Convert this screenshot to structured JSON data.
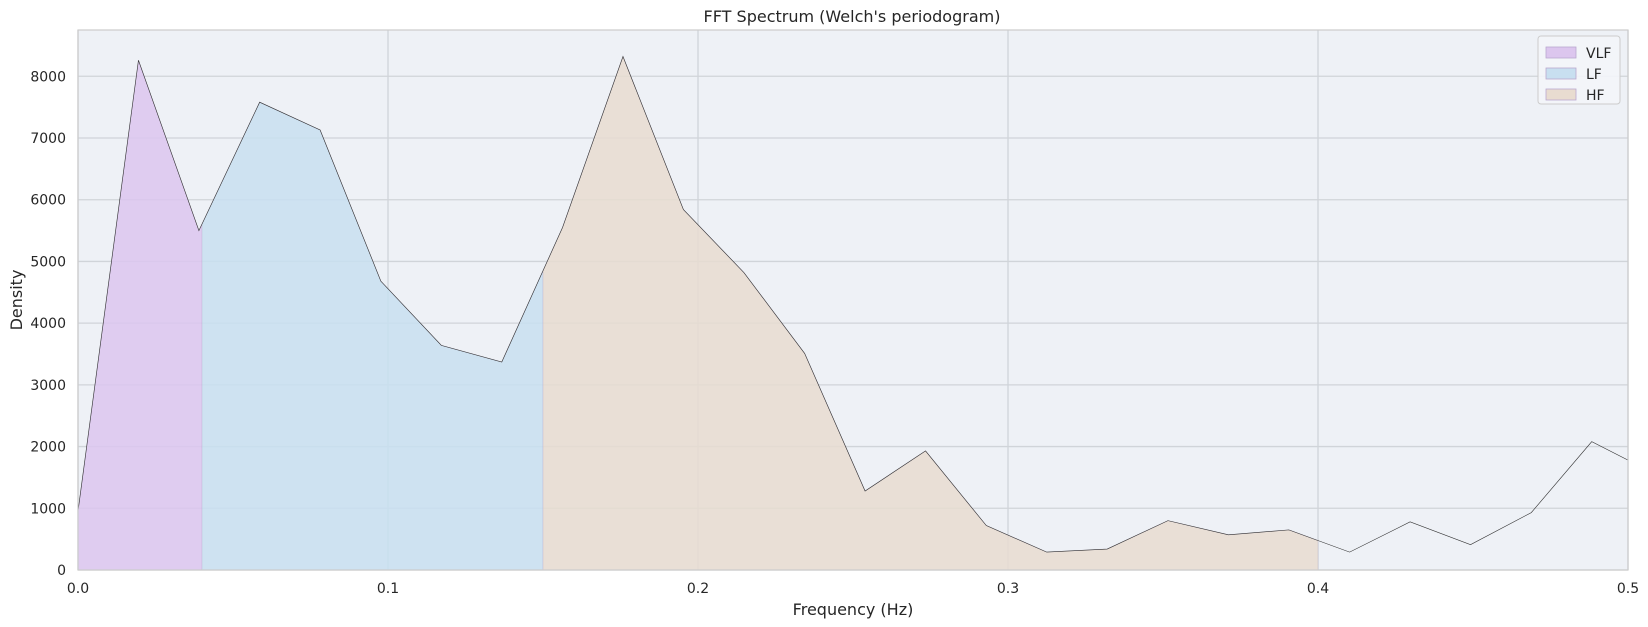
{
  "chart_data": {
    "type": "area",
    "title": "FFT Spectrum (Welch's periodogram)",
    "xlabel": "Frequency (Hz)",
    "ylabel": "Density",
    "xlim": [
      0,
      0.5
    ],
    "ylim": [
      0,
      8750
    ],
    "x_ticks": [
      0,
      0.1,
      0.2,
      0.3,
      0.4,
      0.5
    ],
    "x_tick_labels": [
      "0.0",
      "0.1",
      "0.2",
      "0.3",
      "0.4",
      "0.5"
    ],
    "y_ticks": [
      0,
      1000,
      2000,
      3000,
      4000,
      5000,
      6000,
      7000,
      8000
    ],
    "y_tick_labels": [
      "0",
      "1000",
      "2000",
      "3000",
      "4000",
      "5000",
      "6000",
      "7000",
      "8000"
    ],
    "grid": true,
    "legend_position": "top-right",
    "line_color": "#2f2f2f",
    "background_color": "#eef1f6",
    "spectrum": {
      "x": [
        0.0,
        0.0195,
        0.039,
        0.0586,
        0.0781,
        0.0977,
        0.1172,
        0.1367,
        0.1563,
        0.1758,
        0.1953,
        0.2148,
        0.2344,
        0.2539,
        0.2734,
        0.293,
        0.3125,
        0.332,
        0.3516,
        0.3711,
        0.3906,
        0.4102,
        0.4297,
        0.4492,
        0.4688,
        0.4883,
        0.5
      ],
      "y": [
        950,
        8260,
        5500,
        7580,
        7130,
        4680,
        3640,
        3370,
        5550,
        8320,
        5840,
        4820,
        3510,
        1280,
        1930,
        720,
        290,
        340,
        800,
        570,
        650,
        290,
        780,
        410,
        930,
        2080,
        1780
      ]
    },
    "bands": [
      {
        "name": "VLF",
        "range": [
          0.0,
          0.04
        ],
        "color": "#dcc6ee"
      },
      {
        "name": "LF",
        "range": [
          0.04,
          0.15
        ],
        "color": "#c8dff0"
      },
      {
        "name": "HF",
        "range": [
          0.15,
          0.4
        ],
        "color": "#e8dcd0"
      }
    ]
  }
}
